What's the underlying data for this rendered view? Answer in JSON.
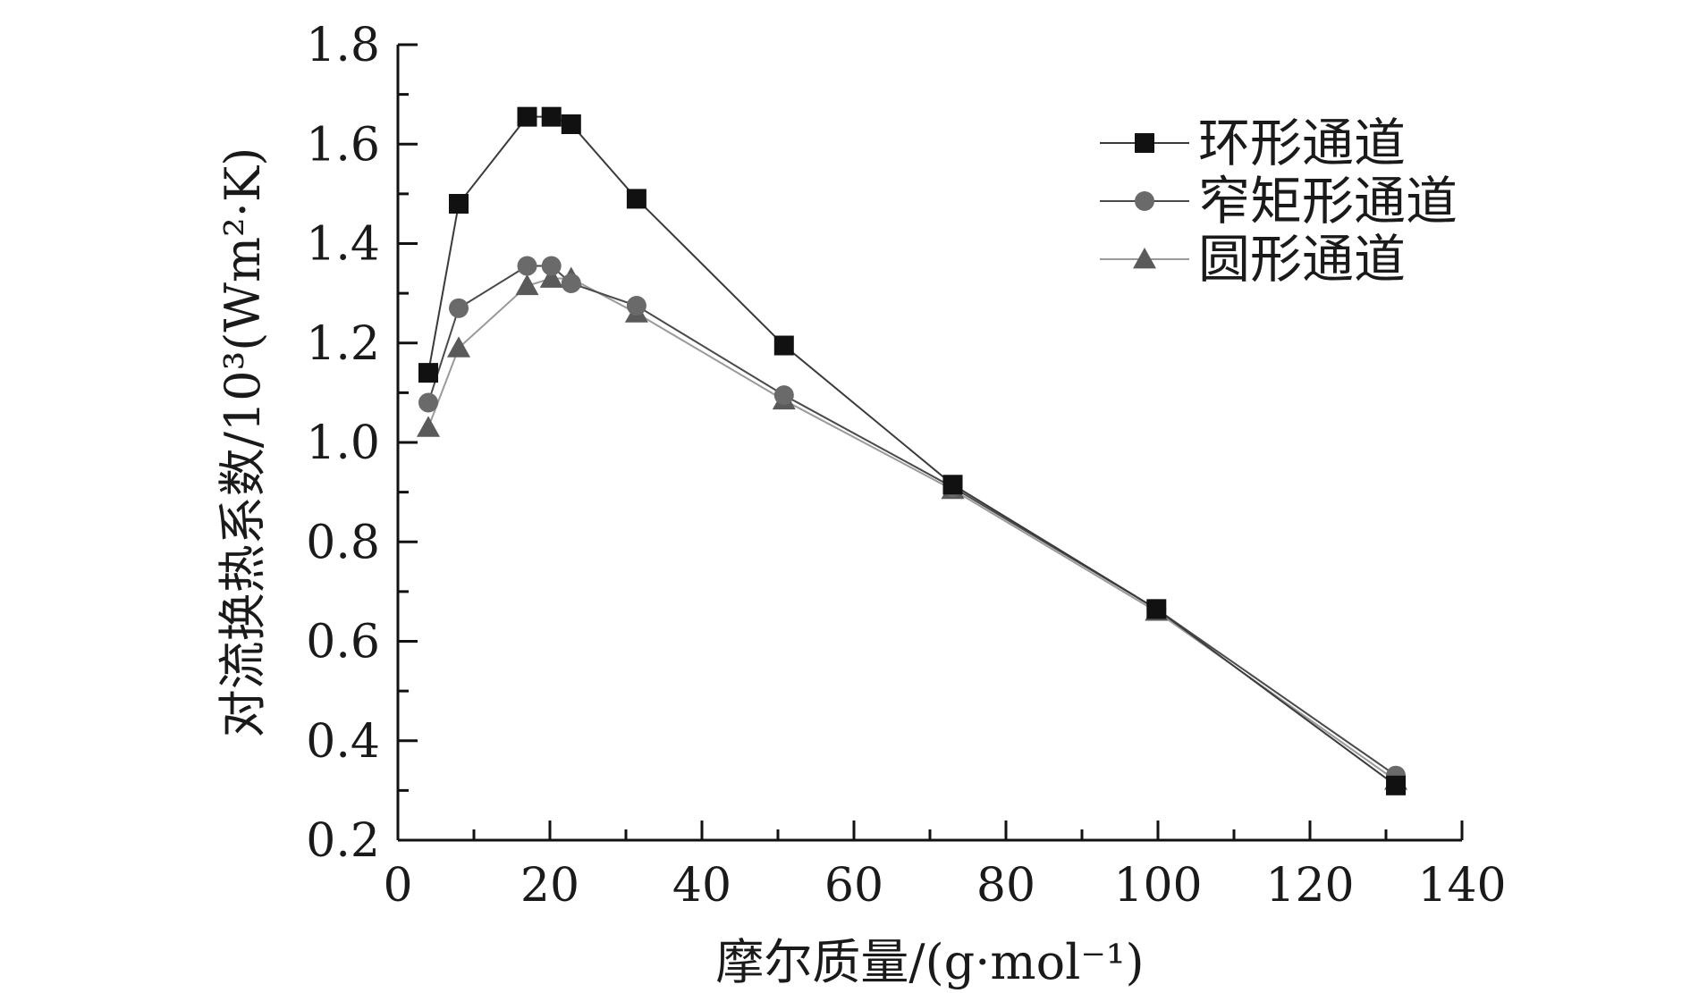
{
  "chart_data": {
    "type": "line",
    "title": "",
    "xlabel": "摩尔质量/(g·mol⁻¹)",
    "ylabel": "对流换热系数/10³(Wm²·K)",
    "xlim": [
      0,
      140
    ],
    "ylim": [
      0.2,
      1.8
    ],
    "xticks": [
      "0",
      "20",
      "40",
      "60",
      "80",
      "100",
      "120",
      "140"
    ],
    "yticks": [
      "0.2",
      "0.4",
      "0.6",
      "0.8",
      "1.0",
      "1.2",
      "1.4",
      "1.6",
      "1.8"
    ],
    "grid": false,
    "legend_position": "top-right",
    "series": [
      {
        "name": "环形通道",
        "marker": "square",
        "color": "#111111",
        "line_color": "#3a3a3a",
        "x": [
          4,
          8,
          17,
          20.2,
          22.8,
          31.4,
          50.8,
          73,
          99.8,
          131.3
        ],
        "y": [
          1.14,
          1.48,
          1.655,
          1.655,
          1.64,
          1.49,
          1.195,
          0.915,
          0.665,
          0.31
        ]
      },
      {
        "name": "窄矩形通道",
        "marker": "circle",
        "color": "#6a6a6a",
        "line_color": "#4a4a4a",
        "x": [
          4,
          8,
          17,
          20.2,
          22.8,
          31.4,
          50.8,
          73,
          99.8,
          131.3
        ],
        "y": [
          1.08,
          1.27,
          1.355,
          1.355,
          1.32,
          1.275,
          1.095,
          0.91,
          0.665,
          0.33
        ]
      },
      {
        "name": "圆形通道",
        "marker": "triangle",
        "color": "#5a5a5a",
        "line_color": "#9a9a9a",
        "x": [
          4,
          8,
          17,
          20.2,
          22.8,
          31.4,
          50.8,
          73,
          99.8,
          131.3
        ],
        "y": [
          1.03,
          1.19,
          1.315,
          1.33,
          1.33,
          1.26,
          1.085,
          0.905,
          0.66,
          0.32
        ]
      }
    ]
  }
}
